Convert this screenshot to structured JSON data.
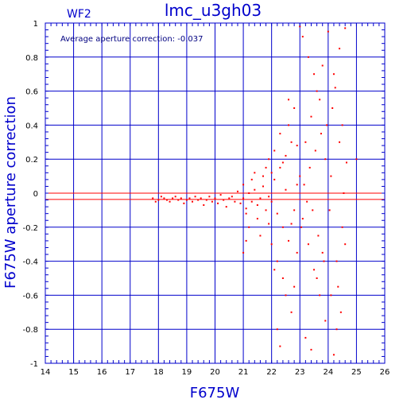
{
  "chart_data": {
    "type": "scatter",
    "title": "lmc_u3gh03",
    "subtitle": "WF2",
    "xlabel": "F675W",
    "ylabel": "F675W aperture correction",
    "annotation": "Average aperture correction: -0.037",
    "xlim": [
      14,
      26
    ],
    "ylim": [
      -1,
      1
    ],
    "x_ticks": [
      14,
      15,
      16,
      17,
      18,
      19,
      20,
      21,
      22,
      23,
      24,
      25,
      26
    ],
    "y_ticks": [
      -1,
      -0.8,
      -0.6,
      -0.4,
      -0.2,
      0,
      0.2,
      0.4,
      0.6,
      0.8,
      1
    ],
    "x_tick_labels": [
      "14",
      "15",
      "16",
      "17",
      "18",
      "19",
      "20",
      "21",
      "22",
      "23",
      "24",
      "25",
      "26"
    ],
    "y_tick_labels": [
      "-1",
      "-0.8",
      "-0.6",
      "-0.4",
      "-0.2",
      "0",
      "0.2",
      "0.4",
      "0.6",
      "0.8",
      "1"
    ],
    "grid": true,
    "zero_line": 0,
    "average_line": -0.037,
    "colors": {
      "axes": "#0000cc",
      "points": "#ff0000",
      "average_line": "#ff0000",
      "zero_line": "#ff0000"
    },
    "series": [
      {
        "values": [
          [
            17.8,
            -0.03
          ],
          [
            17.9,
            -0.05
          ],
          [
            18.0,
            -0.04
          ],
          [
            18.1,
            -0.02
          ],
          [
            18.2,
            -0.03
          ],
          [
            18.3,
            -0.04
          ],
          [
            18.4,
            -0.05
          ],
          [
            18.5,
            -0.03
          ],
          [
            18.6,
            -0.02
          ],
          [
            18.7,
            -0.04
          ],
          [
            18.8,
            -0.03
          ],
          [
            18.9,
            -0.06
          ],
          [
            19.0,
            -0.04
          ],
          [
            19.1,
            -0.03
          ],
          [
            19.2,
            -0.05
          ],
          [
            19.3,
            -0.02
          ],
          [
            19.4,
            -0.04
          ],
          [
            19.5,
            -0.03
          ],
          [
            19.6,
            -0.07
          ],
          [
            19.7,
            -0.04
          ],
          [
            19.8,
            -0.02
          ],
          [
            19.9,
            -0.05
          ],
          [
            20.0,
            -0.03
          ],
          [
            20.1,
            -0.06
          ],
          [
            20.2,
            -0.01
          ],
          [
            20.3,
            -0.04
          ],
          [
            20.4,
            -0.08
          ],
          [
            20.5,
            -0.03
          ],
          [
            20.6,
            -0.02
          ],
          [
            20.7,
            -0.05
          ],
          [
            20.8,
            0.01
          ],
          [
            20.9,
            -0.06
          ],
          [
            21.0,
            -0.03
          ],
          [
            21.1,
            -0.09
          ],
          [
            21.2,
            0.0
          ],
          [
            21.3,
            -0.05
          ],
          [
            21.4,
            0.02
          ],
          [
            21.5,
            -0.07
          ],
          [
            21.6,
            -0.03
          ],
          [
            21.7,
            0.04
          ],
          [
            21.8,
            -0.1
          ],
          [
            21.9,
            -0.02
          ],
          [
            21.0,
            0.05
          ],
          [
            21.1,
            -0.12
          ],
          [
            21.3,
            0.08
          ],
          [
            21.5,
            -0.15
          ],
          [
            21.7,
            0.1
          ],
          [
            21.9,
            -0.18
          ],
          [
            21.2,
            -0.2
          ],
          [
            21.4,
            0.12
          ],
          [
            21.6,
            -0.25
          ],
          [
            21.8,
            0.15
          ],
          [
            21.1,
            -0.28
          ],
          [
            21.0,
            -0.35
          ],
          [
            21.9,
            0.2
          ],
          [
            22.0,
            -0.05
          ],
          [
            22.1,
            0.08
          ],
          [
            22.2,
            -0.12
          ],
          [
            22.3,
            0.15
          ],
          [
            22.4,
            -0.2
          ],
          [
            22.5,
            0.22
          ],
          [
            22.6,
            -0.28
          ],
          [
            22.7,
            0.3
          ],
          [
            22.8,
            -0.1
          ],
          [
            22.9,
            0.05
          ],
          [
            22.0,
            -0.3
          ],
          [
            22.1,
            0.25
          ],
          [
            22.2,
            -0.4
          ],
          [
            22.3,
            0.35
          ],
          [
            22.4,
            -0.5
          ],
          [
            22.5,
            -0.6
          ],
          [
            22.6,
            0.4
          ],
          [
            22.7,
            -0.7
          ],
          [
            22.8,
            0.5
          ],
          [
            22.9,
            -0.35
          ],
          [
            22.2,
            -0.8
          ],
          [
            22.3,
            -0.9
          ],
          [
            22.6,
            0.55
          ],
          [
            22.8,
            -0.55
          ],
          [
            22.4,
            0.18
          ],
          [
            22.1,
            -0.45
          ],
          [
            22.7,
            -0.18
          ],
          [
            22.5,
            0.02
          ],
          [
            22.9,
            0.28
          ],
          [
            22.0,
            0.12
          ],
          [
            23.0,
            0.1
          ],
          [
            23.1,
            -0.15
          ],
          [
            23.2,
            0.3
          ],
          [
            23.3,
            -0.3
          ],
          [
            23.4,
            0.45
          ],
          [
            23.5,
            -0.45
          ],
          [
            23.6,
            0.6
          ],
          [
            23.7,
            -0.6
          ],
          [
            23.8,
            0.75
          ],
          [
            23.9,
            -0.75
          ],
          [
            23.0,
            0.98
          ],
          [
            23.1,
            0.92
          ],
          [
            23.2,
            -0.85
          ],
          [
            23.3,
            0.8
          ],
          [
            23.4,
            -0.92
          ],
          [
            23.5,
            0.7
          ],
          [
            23.6,
            -0.5
          ],
          [
            23.7,
            0.55
          ],
          [
            23.8,
            -0.35
          ],
          [
            23.9,
            0.2
          ],
          [
            23.05,
            -0.2
          ],
          [
            23.15,
            0.05
          ],
          [
            23.25,
            -0.05
          ],
          [
            23.35,
            0.15
          ],
          [
            23.45,
            -0.1
          ],
          [
            23.55,
            0.25
          ],
          [
            23.65,
            -0.25
          ],
          [
            23.75,
            0.35
          ],
          [
            23.85,
            -0.4
          ],
          [
            23.95,
            0.4
          ],
          [
            24.0,
            0.95
          ],
          [
            24.1,
            -0.6
          ],
          [
            24.2,
            0.7
          ],
          [
            24.3,
            -0.4
          ],
          [
            24.4,
            0.85
          ],
          [
            24.5,
            -0.2
          ],
          [
            24.6,
            0.97
          ],
          [
            24.1,
            0.1
          ],
          [
            24.3,
            -0.8
          ],
          [
            24.2,
            -0.95
          ],
          [
            24.4,
            0.3
          ],
          [
            24.05,
            -0.1
          ],
          [
            24.15,
            0.5
          ],
          [
            24.35,
            -0.55
          ],
          [
            24.25,
            0.62
          ],
          [
            24.5,
            0.4
          ],
          [
            24.6,
            -0.3
          ],
          [
            24.45,
            -0.7
          ],
          [
            24.55,
            0.0
          ],
          [
            24.65,
            0.18
          ],
          [
            25.0,
            0.2
          ]
        ]
      }
    ]
  }
}
